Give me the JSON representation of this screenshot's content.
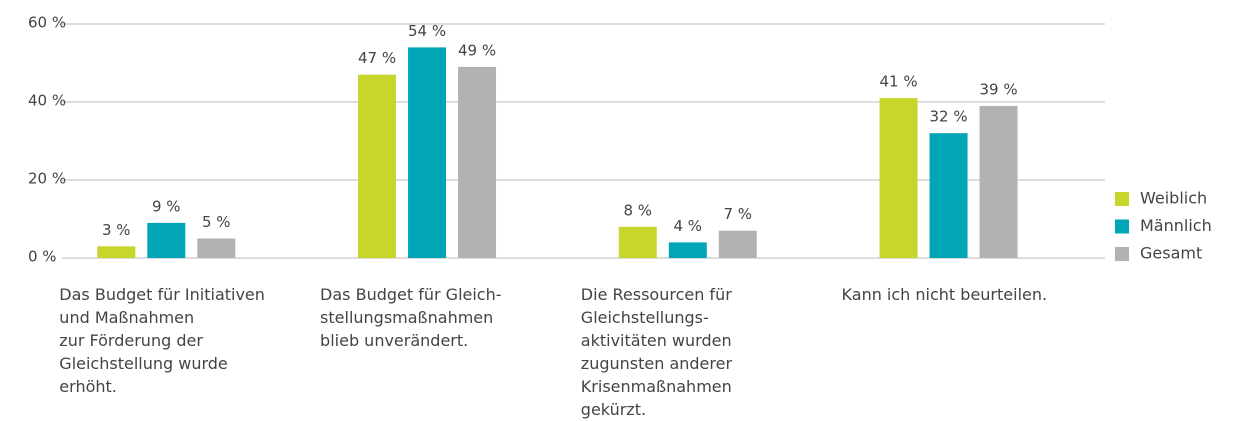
{
  "chart_data": {
    "type": "bar",
    "categories": [
      "Das Budget für Initiativen\nund Maßnahmen\nzur Förderung der\nGleichstellung wurde\nerhöht.",
      "Das Budget für Gleich-\nstellungsmaßnahmen\nblieb unverändert.",
      "Die Ressourcen für\nGleichstellungs-\naktivitäten wurden\nzugunsten anderer\nKrisenmaßnahmen\ngekürzt.",
      "Kann ich nicht beurteilen."
    ],
    "series": [
      {
        "name": "Weiblich",
        "color": "#c8d62b",
        "values": [
          3,
          47,
          8,
          41
        ],
        "value_labels": [
          "3 %",
          "47 %",
          "8 %",
          "41 %"
        ]
      },
      {
        "name": "Männlich",
        "color": "#00a6b5",
        "values": [
          9,
          54,
          4,
          32
        ],
        "value_labels": [
          "9 %",
          "54 %",
          "4 %",
          "32 %"
        ]
      },
      {
        "name": "Gesamt",
        "color": "#b1b3b3",
        "values": [
          5,
          49,
          7,
          39
        ],
        "value_labels": [
          "5 %",
          "49 %",
          "7 %",
          "39 %"
        ]
      }
    ],
    "ylim": [
      0,
      60
    ],
    "yticks": [
      {
        "value": 0,
        "label": "0 %"
      },
      {
        "value": 20,
        "label": "20 %"
      },
      {
        "value": 40,
        "label": "40 %"
      },
      {
        "value": 60,
        "label": "60 %"
      }
    ],
    "grid": true,
    "legend": "right"
  }
}
